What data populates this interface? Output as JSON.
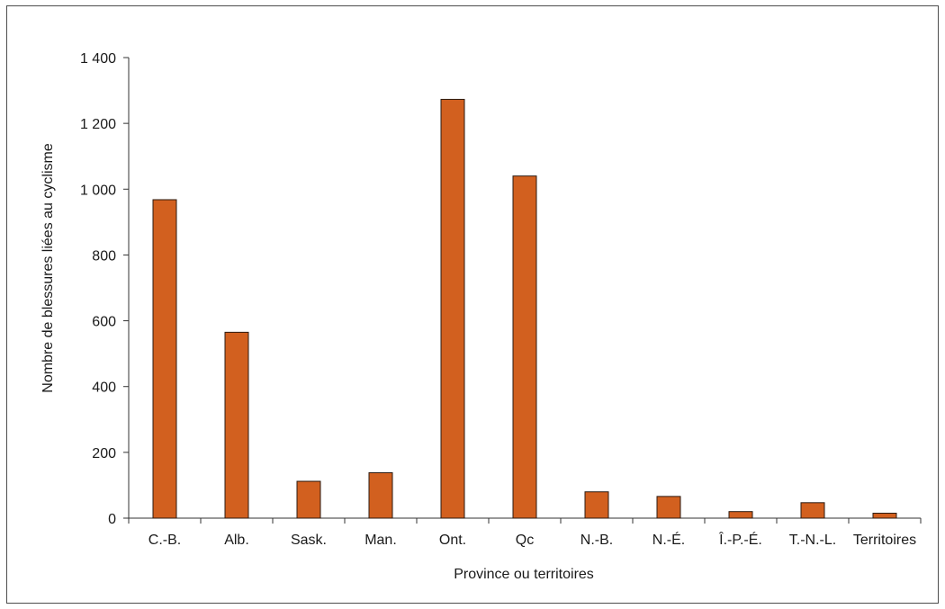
{
  "chart_data": {
    "type": "bar",
    "title": "",
    "xlabel": "Province ou territoires",
    "ylabel": "Nombre de blessures liées au cyclisme",
    "categories": [
      "C.-B.",
      "Alb.",
      "Sask.",
      "Man.",
      "Ont.",
      "Qc",
      "N.-B.",
      "N.-É.",
      "Î.-P.-É.",
      "T.-N.-L.",
      "Territoires"
    ],
    "values": [
      968,
      565,
      112,
      138,
      1273,
      1040,
      80,
      66,
      20,
      47,
      15
    ],
    "ylim": [
      0,
      1400
    ],
    "yticks": [
      0,
      200,
      400,
      600,
      800,
      1000,
      1200,
      1400
    ],
    "ytick_labels": [
      "0",
      "200",
      "400",
      "600",
      "800",
      "1 000",
      "1 200",
      "1 400"
    ],
    "grid": false,
    "legend": "none",
    "bar_color": "#d2601f",
    "bar_edge_color": "#2b1a10"
  }
}
